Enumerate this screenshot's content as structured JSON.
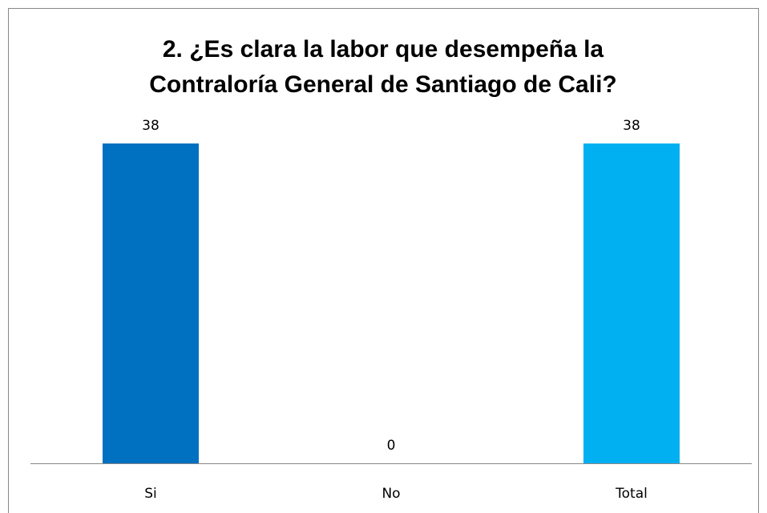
{
  "chart_data": {
    "type": "bar",
    "title": "2. ¿Es clara la labor que desempeña la Contraloría General de Santiago de Cali?",
    "categories": [
      "Si",
      "No",
      "Total"
    ],
    "values": [
      38,
      0,
      38
    ],
    "colors": [
      "#0070c0",
      "#0070c0",
      "#00b0f0"
    ]
  }
}
